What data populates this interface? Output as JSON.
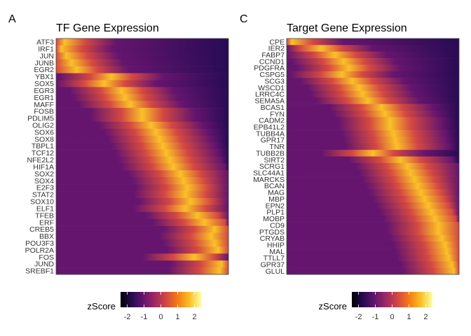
{
  "chart_data": [
    {
      "type": "heatmap",
      "panel_letter": "A",
      "title": "TF Gene Expression",
      "rows": [
        "ATF3",
        "IRF1",
        "JUN",
        "JUNB",
        "EGR2",
        "YBX1",
        "SOX5",
        "EGR3",
        "EGR1",
        "MAFF",
        "FOSB",
        "PDLIM5",
        "OLIG2",
        "SOX6",
        "SOX8",
        "TBPL1",
        "TCF12",
        "NFE2L2",
        "HIF1A",
        "SOX2",
        "SOX4",
        "E2F3",
        "STAT2",
        "SOX10",
        "ELF1",
        "TFEB",
        "ERF",
        "CREB5",
        "BBX",
        "POU3F3",
        "POLR2A",
        "FOS",
        "JUND",
        "SREBF1"
      ],
      "peak_position": [
        0.05,
        0.03,
        0.06,
        0.09,
        0.12,
        0.32,
        0.28,
        0.38,
        0.4,
        0.43,
        0.5,
        0.5,
        0.55,
        0.58,
        0.6,
        0.62,
        0.64,
        0.66,
        0.68,
        0.72,
        0.74,
        0.76,
        0.75,
        0.78,
        0.75,
        0.82,
        0.86,
        0.92,
        0.9,
        0.92,
        0.94,
        0.8,
        0.96,
        0.95
      ],
      "legend": {
        "title": "zScore",
        "ticks": [
          -2,
          -1,
          0,
          1,
          2
        ],
        "range": [
          -2.4,
          2.4
        ]
      }
    },
    {
      "type": "heatmap",
      "panel_letter": "C",
      "title": "Target Gene Expression",
      "rows": [
        "CPE",
        "IER2",
        "FABP7",
        "CCND1",
        "PDGFRA",
        "CSPG5",
        "SCG3",
        "WSCD1",
        "LRRC4C",
        "SEMA5A",
        "BCAS1",
        "FYN",
        "CADM2",
        "EPB41L2",
        "TUBB4A",
        "GPR17",
        "TNR",
        "TUBB2B",
        "SIRT2",
        "SCRG1",
        "SLC44A1",
        "MARCKS",
        "BCAN",
        "MAG",
        "MBP",
        "EPN2",
        "PLP1",
        "MOBP",
        "CD9",
        "PTGDS",
        "CRYAB",
        "HHIP",
        "MAL",
        "TTLL7",
        "GPR37",
        "GLUL"
      ],
      "peak_position": [
        0.03,
        0.2,
        0.28,
        0.33,
        0.36,
        0.32,
        0.38,
        0.42,
        0.44,
        0.47,
        0.55,
        0.57,
        0.6,
        0.6,
        0.62,
        0.63,
        0.64,
        0.5,
        0.66,
        0.7,
        0.72,
        0.74,
        0.76,
        0.78,
        0.8,
        0.82,
        0.84,
        0.86,
        0.88,
        0.88,
        0.9,
        0.92,
        0.93,
        0.94,
        0.96,
        0.97
      ],
      "legend": {
        "title": "zScore",
        "ticks": [
          -2,
          -1,
          0,
          1,
          2
        ],
        "range": [
          -2.4,
          2.4
        ]
      }
    }
  ],
  "colors": {
    "scale": [
      "#000004",
      "#280b54",
      "#65156e",
      "#9f2a63",
      "#d44842",
      "#f57d15",
      "#fac127",
      "#fcffa4"
    ]
  }
}
